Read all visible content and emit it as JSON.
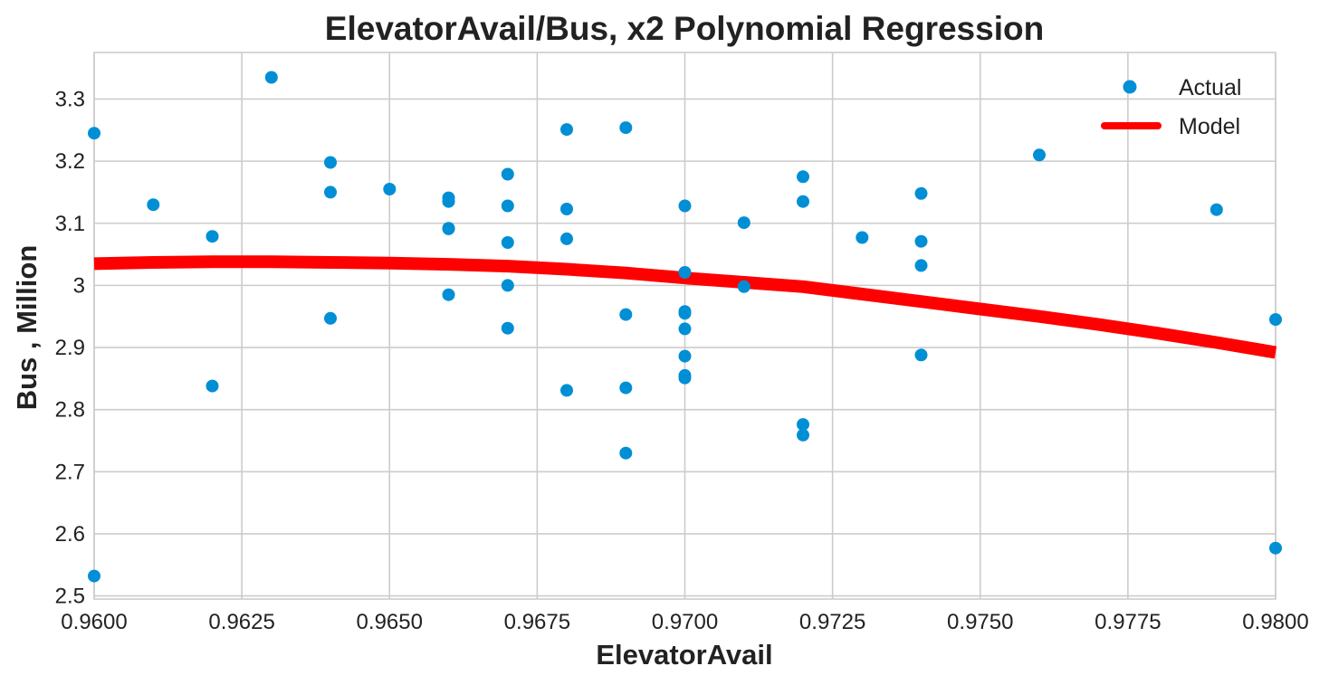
{
  "chart_data": {
    "type": "scatter",
    "title": "ElevatorAvail/Bus, x2 Polynomial Regression",
    "xlabel": "ElevatorAvail",
    "ylabel": "Bus , Million",
    "xlim": [
      0.96,
      0.98
    ],
    "ylim": [
      2.495,
      3.375
    ],
    "xticks": [
      "0.9600",
      "0.9625",
      "0.9650",
      "0.9675",
      "0.9700",
      "0.9725",
      "0.9750",
      "0.9775",
      "0.9800"
    ],
    "xtick_values": [
      0.96,
      0.9625,
      0.965,
      0.9675,
      0.97,
      0.9725,
      0.975,
      0.9775,
      0.98
    ],
    "yticks": [
      "2.5",
      "2.6",
      "2.7",
      "2.8",
      "2.9",
      "3",
      "3.1",
      "3.2",
      "3.3"
    ],
    "ytick_values": [
      2.5,
      2.6,
      2.7,
      2.8,
      2.9,
      3.0,
      3.1,
      3.2,
      3.3
    ],
    "grid": true,
    "legend_position": "top-right",
    "series": [
      {
        "name": "Actual",
        "kind": "scatter",
        "color": "#008fd5",
        "points": [
          [
            0.96,
            3.245
          ],
          [
            0.96,
            2.532
          ],
          [
            0.961,
            3.13
          ],
          [
            0.962,
            3.079
          ],
          [
            0.962,
            2.838
          ],
          [
            0.963,
            3.335
          ],
          [
            0.964,
            3.198
          ],
          [
            0.964,
            3.15
          ],
          [
            0.964,
            2.947
          ],
          [
            0.965,
            3.155
          ],
          [
            0.966,
            3.141
          ],
          [
            0.966,
            3.135
          ],
          [
            0.966,
            3.092
          ],
          [
            0.966,
            3.091
          ],
          [
            0.966,
            2.985
          ],
          [
            0.967,
            3.179
          ],
          [
            0.967,
            3.128
          ],
          [
            0.967,
            3.069
          ],
          [
            0.967,
            3.0
          ],
          [
            0.967,
            2.931
          ],
          [
            0.968,
            3.251
          ],
          [
            0.968,
            3.123
          ],
          [
            0.968,
            3.075
          ],
          [
            0.968,
            2.831
          ],
          [
            0.969,
            3.254
          ],
          [
            0.969,
            2.953
          ],
          [
            0.969,
            2.835
          ],
          [
            0.969,
            2.73
          ],
          [
            0.97,
            3.128
          ],
          [
            0.97,
            3.021
          ],
          [
            0.97,
            2.958
          ],
          [
            0.97,
            2.955
          ],
          [
            0.97,
            2.93
          ],
          [
            0.97,
            2.886
          ],
          [
            0.97,
            2.855
          ],
          [
            0.97,
            2.851
          ],
          [
            0.971,
            3.101
          ],
          [
            0.971,
            2.998
          ],
          [
            0.972,
            3.175
          ],
          [
            0.972,
            3.135
          ],
          [
            0.972,
            2.776
          ],
          [
            0.972,
            2.759
          ],
          [
            0.973,
            3.077
          ],
          [
            0.974,
            3.148
          ],
          [
            0.974,
            3.071
          ],
          [
            0.974,
            3.032
          ],
          [
            0.974,
            2.888
          ],
          [
            0.976,
            3.21
          ],
          [
            0.979,
            3.122
          ],
          [
            0.98,
            2.945
          ],
          [
            0.98,
            2.577
          ]
        ]
      },
      {
        "name": "Model",
        "kind": "line",
        "color": "#ff0000",
        "points": [
          [
            0.96,
            3.035
          ],
          [
            0.961,
            3.037
          ],
          [
            0.962,
            3.038
          ],
          [
            0.963,
            3.038
          ],
          [
            0.964,
            3.037
          ],
          [
            0.965,
            3.036
          ],
          [
            0.966,
            3.034
          ],
          [
            0.967,
            3.031
          ],
          [
            0.968,
            3.026
          ],
          [
            0.969,
            3.02
          ],
          [
            0.97,
            3.012
          ],
          [
            0.971,
            3.005
          ],
          [
            0.972,
            2.998
          ],
          [
            0.973,
            2.986
          ],
          [
            0.974,
            2.974
          ],
          [
            0.975,
            2.962
          ],
          [
            0.976,
            2.95
          ],
          [
            0.977,
            2.937
          ],
          [
            0.978,
            2.923
          ],
          [
            0.979,
            2.908
          ],
          [
            0.98,
            2.892
          ]
        ]
      }
    ]
  }
}
